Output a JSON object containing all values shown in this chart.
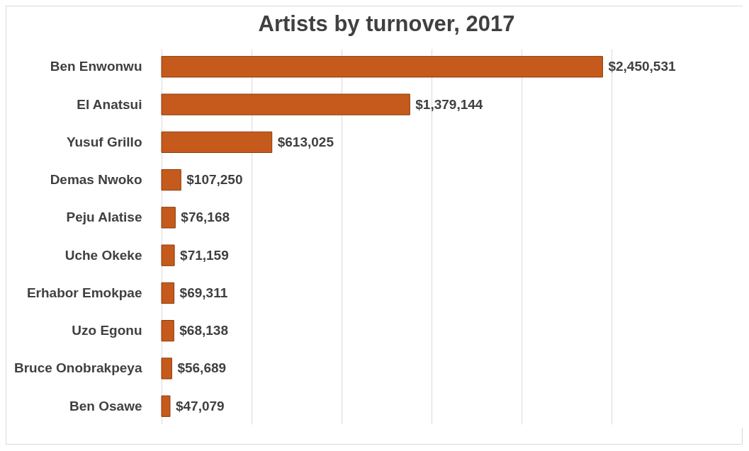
{
  "chart_data": {
    "type": "bar",
    "orientation": "horizontal",
    "title": "Artists by turnover, 2017",
    "categories": [
      "Ben Enwonwu",
      "El Anatsui",
      "Yusuf Grillo",
      "Demas Nwoko",
      "Peju Alatise",
      "Uche Okeke",
      "Erhabor Emokpae",
      "Uzo Egonu",
      "Bruce Onobrakpeya",
      "Ben Osawe"
    ],
    "values": [
      2450531,
      1379144,
      613025,
      107250,
      76168,
      71159,
      69311,
      68138,
      56689,
      47079
    ],
    "value_labels": [
      "$2,450,531",
      "$1,379,144",
      "$613,025",
      "$107,250",
      "$76,168",
      "$71,159",
      "$69,311",
      "$68,138",
      "$56,689",
      "$47,079"
    ],
    "color": "#c55a1c",
    "xlim": [
      0,
      2500000
    ],
    "xticks": [
      {
        "value": 0,
        "label": null
      },
      {
        "value": 500000,
        "label": null
      },
      {
        "value": 1000000,
        "label": null
      },
      {
        "value": 1500000,
        "label": null
      },
      {
        "value": 2000000,
        "label": null
      },
      {
        "value": 2500000,
        "label": null
      }
    ],
    "grid": "x",
    "tick_labels": "y"
  }
}
